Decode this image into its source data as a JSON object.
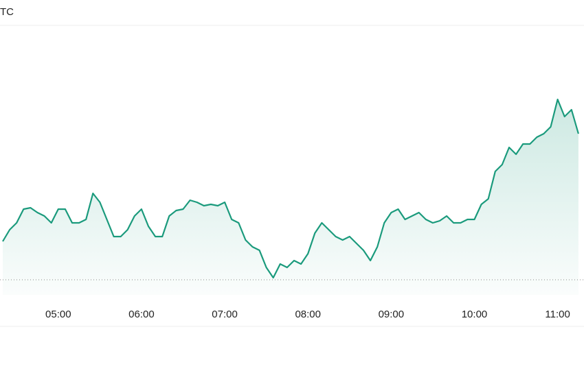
{
  "chart_data": {
    "type": "area",
    "title": "TC",
    "x": [
      "04:20",
      "04:25",
      "04:30",
      "04:35",
      "04:40",
      "04:45",
      "04:50",
      "04:55",
      "05:00",
      "05:05",
      "05:10",
      "05:15",
      "05:20",
      "05:25",
      "05:30",
      "05:35",
      "05:40",
      "05:45",
      "05:50",
      "05:55",
      "06:00",
      "06:05",
      "06:10",
      "06:15",
      "06:20",
      "06:25",
      "06:30",
      "06:35",
      "06:40",
      "06:45",
      "06:50",
      "06:55",
      "07:00",
      "07:05",
      "07:10",
      "07:15",
      "07:20",
      "07:25",
      "07:30",
      "07:35",
      "07:40",
      "07:45",
      "07:50",
      "07:55",
      "08:00",
      "08:05",
      "08:10",
      "08:15",
      "08:20",
      "08:25",
      "08:30",
      "08:35",
      "08:40",
      "08:45",
      "08:50",
      "08:55",
      "09:00",
      "09:05",
      "09:10",
      "09:15",
      "09:20",
      "09:25",
      "09:30",
      "09:35",
      "09:40",
      "09:45",
      "09:50",
      "09:55",
      "10:00",
      "10:05",
      "10:10",
      "10:15",
      "10:20",
      "10:25",
      "10:30",
      "10:35",
      "10:40",
      "10:45",
      "10:50",
      "10:55",
      "11:00",
      "11:05",
      "11:10",
      "11:15"
    ],
    "values": [
      58,
      75,
      85,
      105,
      107,
      100,
      95,
      85,
      105,
      105,
      85,
      85,
      90,
      128,
      115,
      90,
      65,
      65,
      75,
      95,
      105,
      80,
      65,
      65,
      95,
      103,
      105,
      118,
      115,
      110,
      112,
      110,
      115,
      90,
      85,
      60,
      50,
      45,
      20,
      5,
      25,
      20,
      30,
      25,
      40,
      70,
      85,
      75,
      65,
      60,
      65,
      55,
      45,
      30,
      50,
      85,
      100,
      105,
      90,
      95,
      100,
      90,
      85,
      88,
      95,
      85,
      85,
      90,
      90,
      112,
      120,
      160,
      170,
      195,
      185,
      200,
      200,
      210,
      215,
      225,
      265,
      240,
      250,
      215
    ],
    "color": "#1a9a7c",
    "reference_line": 2,
    "xlim": [
      "04:18",
      "11:19"
    ],
    "ylim": [
      0,
      280
    ],
    "xticks": [
      "05:00",
      "06:00",
      "07:00",
      "08:00",
      "09:00",
      "10:00",
      "11:00"
    ]
  }
}
